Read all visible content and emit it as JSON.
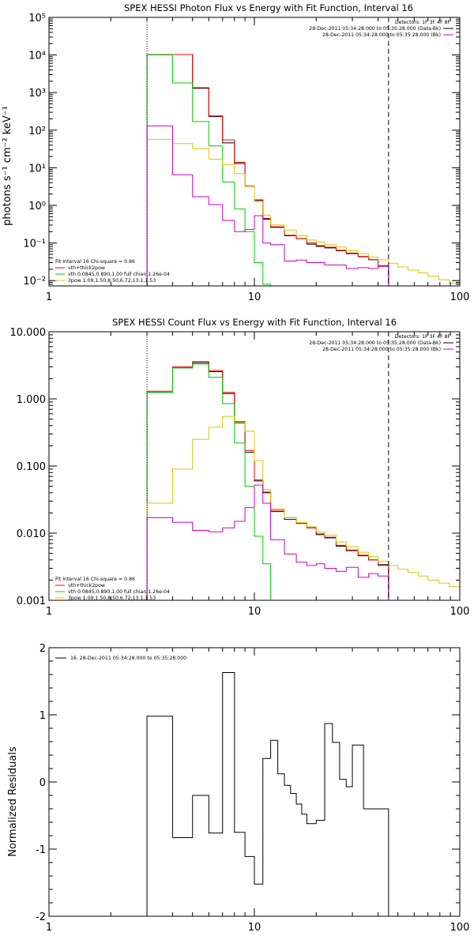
{
  "chart_data": [
    {
      "type": "line",
      "title": "SPEX HESSI Photon Flux vs Energy with Fit Function, Interval 16",
      "xlabel": "",
      "ylabel": "photons s⁻¹ cm⁻² keV⁻¹",
      "xscale": "log",
      "yscale": "log",
      "xlim": [
        1,
        100
      ],
      "ylim": [
        0.0072,
        100000
      ],
      "x_ticks": [
        1,
        10,
        100
      ],
      "x_tick_labels": [
        "1",
        "10",
        "100"
      ],
      "y_ticks": [
        0.01,
        0.1,
        1,
        10,
        100,
        1000,
        10000,
        100000
      ],
      "y_tick_labels": [
        "10⁻²",
        "10⁻¹",
        "10⁰",
        "10¹",
        "10²",
        "10³",
        "10⁴",
        "10⁵"
      ],
      "vlines": [
        {
          "x": 3,
          "style": "dotted"
        },
        {
          "x": 45,
          "style": "dashed"
        }
      ],
      "legend_top_right": [
        "Detectors: 1F 3F 4F 8F",
        "28-Dec-2011 05:34:28.000 to 05:35:28.000 (Data-Bk)",
        "28-Dec-2011 05:34:28.000 to 05:35:28.000 (Bk)"
      ],
      "legend_bottom_left": {
        "header": "Fit Interval 16    Chi-square = 0.86",
        "items": [
          "vth+thick2pow",
          "vth 0.0845,0.890,1.00   full chian 1.26e-04",
          "3pow 1.09,1.50,8.50,6.72,13.1,1.53"
        ]
      },
      "series": [
        {
          "color": "#000000",
          "style": "step",
          "edges": [
            3,
            4,
            5,
            6,
            7,
            8,
            9,
            10,
            11,
            12,
            14,
            16,
            18,
            20,
            22,
            25,
            28,
            32,
            36,
            40,
            45
          ],
          "values": [
            10200,
            10300,
            1300,
            230,
            46,
            13,
            3.2,
            1.35,
            0.43,
            0.26,
            0.155,
            0.13,
            0.093,
            0.081,
            0.074,
            0.062,
            0.052,
            0.043,
            0.036,
            0.024
          ]
        },
        {
          "color": "#ff0000",
          "style": "step",
          "edges": [
            3,
            4,
            5,
            6,
            7,
            8,
            9,
            10,
            11,
            12,
            14,
            16,
            18,
            20,
            22,
            25,
            28,
            32,
            36,
            40,
            45
          ],
          "values": [
            10200,
            10300,
            1350,
            240,
            55,
            14,
            3.3,
            1.4,
            0.45,
            0.27,
            0.16,
            0.13,
            0.1,
            0.085,
            0.077,
            0.064,
            0.054,
            0.044,
            0.036,
            0.025
          ]
        },
        {
          "color": "#00cc00",
          "style": "step",
          "edges": [
            3,
            4,
            5,
            6,
            7,
            8,
            9,
            10,
            11,
            12
          ],
          "values": [
            10100,
            1800,
            170,
            38,
            4.2,
            0.8,
            0.2,
            0.03,
            0.008
          ]
        },
        {
          "color": "#d8c800",
          "style": "step",
          "edges": [
            3,
            4,
            5,
            6,
            7,
            8,
            9,
            10,
            11,
            12,
            14,
            16,
            18,
            20,
            22,
            25,
            28,
            32,
            36,
            40,
            45,
            50,
            56,
            63,
            70,
            79,
            89,
            100
          ],
          "values": [
            57,
            44,
            32,
            17,
            12,
            7,
            3.2,
            1.25,
            0.55,
            0.3,
            0.22,
            0.155,
            0.12,
            0.105,
            0.09,
            0.078,
            0.062,
            0.052,
            0.042,
            0.036,
            0.029,
            0.023,
            0.019,
            0.016,
            0.013,
            0.0105,
            0.0085
          ]
        },
        {
          "color": "#cc00cc",
          "style": "step",
          "edges": [
            3,
            4,
            5,
            6,
            7,
            8,
            9,
            10,
            11,
            12,
            14,
            16,
            18,
            20,
            22,
            25,
            28,
            32,
            36,
            40,
            45
          ],
          "values": [
            130,
            6.5,
            1.7,
            1.05,
            0.4,
            0.2,
            0.23,
            0.53,
            0.1,
            0.09,
            0.033,
            0.035,
            0.03,
            0.03,
            0.026,
            0.026,
            0.021,
            0.022,
            0.021,
            0.024
          ]
        }
      ]
    },
    {
      "type": "line",
      "title": "SPEX HESSI Count Flux vs Energy with Fit Function, Interval 16",
      "xlabel": "",
      "ylabel": "",
      "xscale": "log",
      "yscale": "log",
      "xlim": [
        1,
        100
      ],
      "ylim": [
        0.001,
        10
      ],
      "x_ticks": [
        1,
        10,
        100
      ],
      "x_tick_labels": [
        "1",
        "10",
        "100"
      ],
      "y_ticks": [
        0.001,
        0.01,
        0.1,
        1,
        10
      ],
      "y_tick_labels": [
        "0.001",
        "0.010",
        "0.100",
        "1.000",
        "10.000"
      ],
      "vlines": [
        {
          "x": 3,
          "style": "dotted"
        },
        {
          "x": 45,
          "style": "dashed"
        }
      ],
      "legend_top_right": [
        "Detectors: 1F 3F 4F 8F",
        "28-Dec-2011 05:34:28.000 to 05:35:28.000 (Data-Bk)",
        "28-Dec-2011 05:34:28.000 to 05:35:28.000 (Bk)"
      ],
      "legend_bottom_left": {
        "header": "Fit Interval 16    Chi-square = 0.86",
        "items": [
          "vth+thick2pow",
          "vth 0.0845,0.890,1.00   full chian 1.26e-04",
          "3pow 1.09,1.50,8.50,6.72,13.1,1.53"
        ]
      },
      "series": [
        {
          "color": "#000000",
          "style": "step",
          "edges": [
            3,
            4,
            5,
            6,
            7,
            8,
            9,
            10,
            11,
            12,
            14,
            16,
            18,
            20,
            22,
            25,
            28,
            32,
            36,
            40,
            45
          ],
          "values": [
            1.25,
            2.9,
            3.45,
            2.55,
            1.2,
            0.44,
            0.16,
            0.06,
            0.04,
            0.021,
            0.016,
            0.014,
            0.012,
            0.0095,
            0.0085,
            0.0064,
            0.0055,
            0.0046,
            0.004,
            0.0034
          ]
        },
        {
          "color": "#ff0000",
          "style": "step",
          "edges": [
            3,
            4,
            5,
            6,
            7,
            8,
            9,
            10,
            11,
            12,
            14,
            16,
            18,
            20,
            22,
            25,
            28,
            32,
            36,
            40,
            45
          ],
          "values": [
            1.3,
            3.0,
            3.6,
            2.65,
            1.25,
            0.46,
            0.17,
            0.062,
            0.041,
            0.022,
            0.017,
            0.014,
            0.012,
            0.0098,
            0.0087,
            0.0066,
            0.0056,
            0.0047,
            0.004,
            0.0033
          ]
        },
        {
          "color": "#00cc00",
          "style": "step",
          "edges": [
            3,
            4,
            5,
            6,
            7,
            8,
            9,
            10,
            11,
            12
          ],
          "values": [
            1.25,
            2.9,
            3.3,
            2.1,
            0.85,
            0.22,
            0.05,
            0.009,
            0.0035
          ]
        },
        {
          "color": "#d8c800",
          "style": "step",
          "edges": [
            3,
            4,
            5,
            6,
            7,
            8,
            9,
            10,
            11,
            12,
            14,
            16,
            18,
            20,
            22,
            25,
            28,
            32,
            36,
            40,
            45,
            50,
            56,
            63,
            70,
            79,
            89,
            100
          ],
          "values": [
            0.028,
            0.09,
            0.25,
            0.38,
            0.55,
            0.45,
            0.33,
            0.12,
            0.045,
            0.023,
            0.017,
            0.0145,
            0.0125,
            0.0105,
            0.0093,
            0.0074,
            0.0063,
            0.0052,
            0.0045,
            0.0038,
            0.0033,
            0.0029,
            0.0026,
            0.0023,
            0.002,
            0.0018,
            0.0016
          ]
        },
        {
          "color": "#cc00cc",
          "style": "step",
          "edges": [
            3,
            4,
            5,
            6,
            7,
            8,
            9,
            10,
            11,
            12,
            14,
            16,
            18,
            20,
            22,
            25,
            28,
            32,
            36,
            40,
            45
          ],
          "values": [
            0.017,
            0.0145,
            0.011,
            0.0105,
            0.012,
            0.015,
            0.024,
            0.052,
            0.028,
            0.008,
            0.0049,
            0.0037,
            0.0033,
            0.0035,
            0.003,
            0.0027,
            0.0031,
            0.0022,
            0.0025,
            0.0023
          ]
        }
      ]
    },
    {
      "type": "line",
      "title": "",
      "xlabel": "",
      "ylabel": "Normalized Residuals",
      "xscale": "log",
      "yscale": "linear",
      "xlim": [
        1,
        100
      ],
      "ylim": [
        -2,
        2
      ],
      "x_ticks": [
        1,
        10,
        100
      ],
      "x_tick_labels": [
        "1",
        "10",
        "100"
      ],
      "y_ticks": [
        -2,
        -1,
        0,
        1,
        2
      ],
      "y_tick_labels": [
        "-2",
        "-1",
        "0",
        "1",
        "2"
      ],
      "legend_top_left": [
        "16. 28-Dec-2011 05:34:28.000 to 05:35:28.000"
      ],
      "series": [
        {
          "color": "#000000",
          "style": "step",
          "baseline": -2,
          "edges": [
            3,
            4,
            5,
            6,
            7,
            8,
            9,
            10,
            11,
            12,
            13,
            14,
            15,
            16,
            17,
            18,
            20,
            22,
            24,
            26,
            28,
            30,
            32,
            34,
            36,
            40,
            45
          ],
          "values": [
            0.98,
            -0.83,
            -0.2,
            -0.76,
            1.63,
            -0.75,
            -1.11,
            -1.52,
            0.35,
            0.62,
            0.12,
            -0.05,
            -0.17,
            -0.33,
            -0.48,
            -0.62,
            -0.57,
            0.87,
            0.59,
            0.04,
            -0.07,
            0.55,
            0.55,
            -0.4,
            -0.4,
            -0.4
          ]
        }
      ]
    }
  ]
}
